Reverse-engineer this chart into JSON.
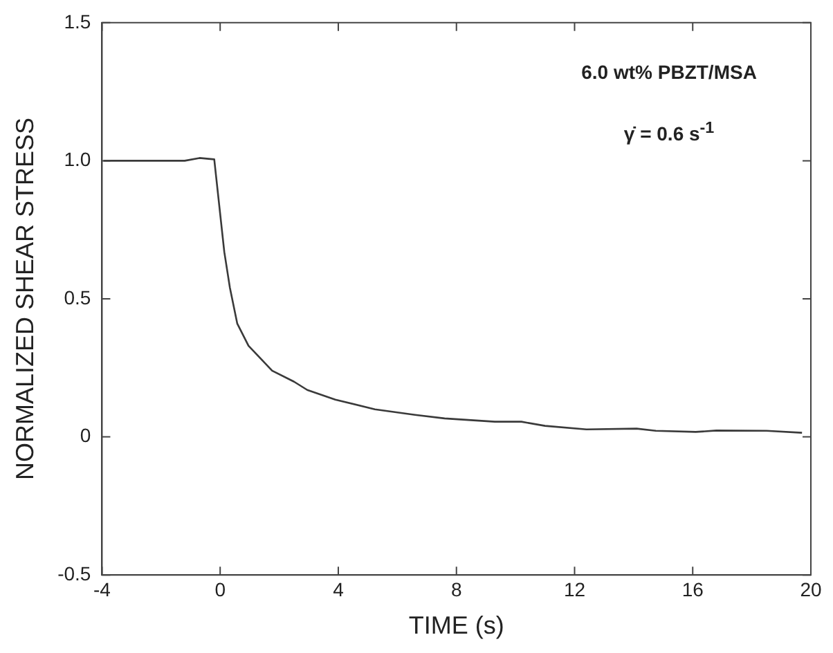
{
  "chart_data": {
    "type": "line",
    "xlabel": "TIME (s)",
    "ylabel": "NORMALIZED SHEAR STRESS",
    "annotations": [
      "6.0 wt% PBZT/MSA",
      "γ̇ = 0.6 s$^{-1}$"
    ],
    "xlim": [
      -4,
      20
    ],
    "xticks": [
      -4,
      0,
      4,
      8,
      12,
      16,
      20
    ],
    "ylim": [
      -0.5,
      1.5
    ],
    "yticks": [
      {
        "value": -0.5,
        "label": "-0.5"
      },
      0,
      {
        "value": 0.5,
        "label": "0.5"
      },
      {
        "value": 1,
        "label": "1.0"
      },
      {
        "value": 1.5,
        "label": "1.5"
      }
    ],
    "grid": false,
    "legend": false,
    "marker": "none",
    "line_style": "solid",
    "series": [
      {
        "color": "#3a3a3a",
        "x": [
          -3.95,
          -2.5,
          -1.2,
          -0.7,
          -0.2,
          0.14,
          0.33,
          0.58,
          0.96,
          1.76,
          2.5,
          2.95,
          3.9,
          5.24,
          6.6,
          7.6,
          9.3,
          10.2,
          11.0,
          12.4,
          14.1,
          14.75,
          16.1,
          16.8,
          18.5,
          19.7
        ],
        "values": [
          1.0,
          1.0,
          1.0,
          1.01,
          1.005,
          0.67,
          0.54,
          0.41,
          0.33,
          0.24,
          0.2,
          0.17,
          0.135,
          0.1,
          0.08,
          0.067,
          0.055,
          0.055,
          0.04,
          0.027,
          0.03,
          0.022,
          0.018,
          0.023,
          0.022,
          0.015
        ]
      }
    ]
  }
}
